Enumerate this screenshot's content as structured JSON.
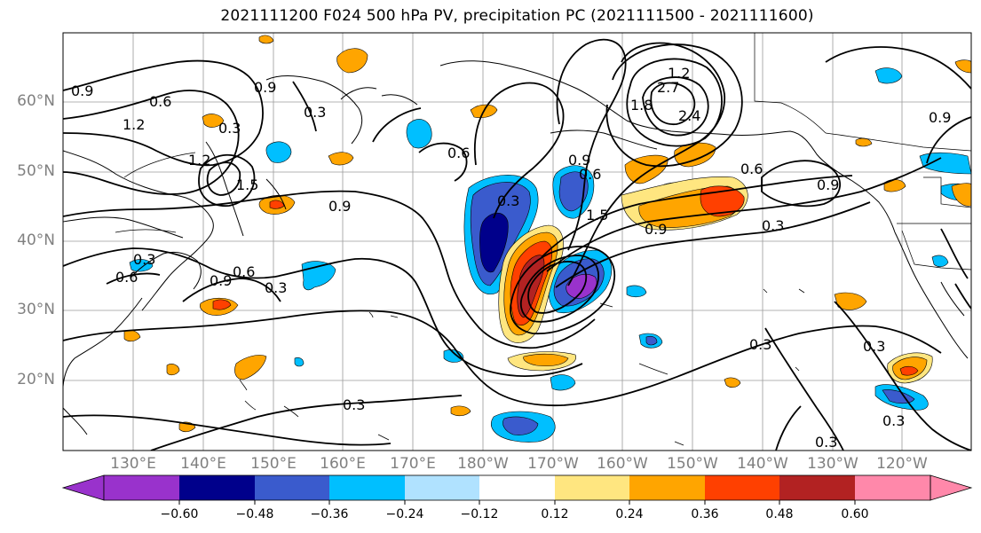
{
  "title": "2021111200 F024 500 hPa PV, precipitation PC (2021111500 - 2021111600)",
  "lat_labels": [
    "60°N",
    "50°N",
    "40°N",
    "30°N",
    "20°N"
  ],
  "lon_labels": [
    "130°E",
    "140°E",
    "150°E",
    "160°E",
    "170°E",
    "180°W",
    "170°W",
    "160°W",
    "150°W",
    "140°W",
    "130°W",
    "120°W"
  ],
  "colorbar": {
    "ticks": [
      "−0.60",
      "−0.48",
      "−0.36",
      "−0.24",
      "−0.12",
      "0.12",
      "0.24",
      "0.36",
      "0.48",
      "0.60"
    ],
    "colors": [
      "#9932cc",
      "#00008b",
      "#3a5bcd",
      "#00bfff",
      "#b0e2ff",
      "#ffffff",
      "#ffe680",
      "#ffa500",
      "#ff4000",
      "#b22222",
      "#ff88aa"
    ]
  },
  "contour_labels": [
    "0.9",
    "0.6",
    "1.2",
    "0.3",
    "0.9",
    "1.5",
    "1.2",
    "0.9",
    "0.3",
    "0.6",
    "0.9",
    "0.6",
    "0.3",
    "0.3",
    "0.6",
    "0.3",
    "0.9",
    "0.6",
    "1.2",
    "1.5",
    "2.7",
    "1.8",
    "2.4",
    "0.6",
    "0.9",
    "0.9",
    "0.3",
    "0.3",
    "0.3",
    "0.3",
    "0.3",
    "0.3",
    "0.9"
  ]
}
